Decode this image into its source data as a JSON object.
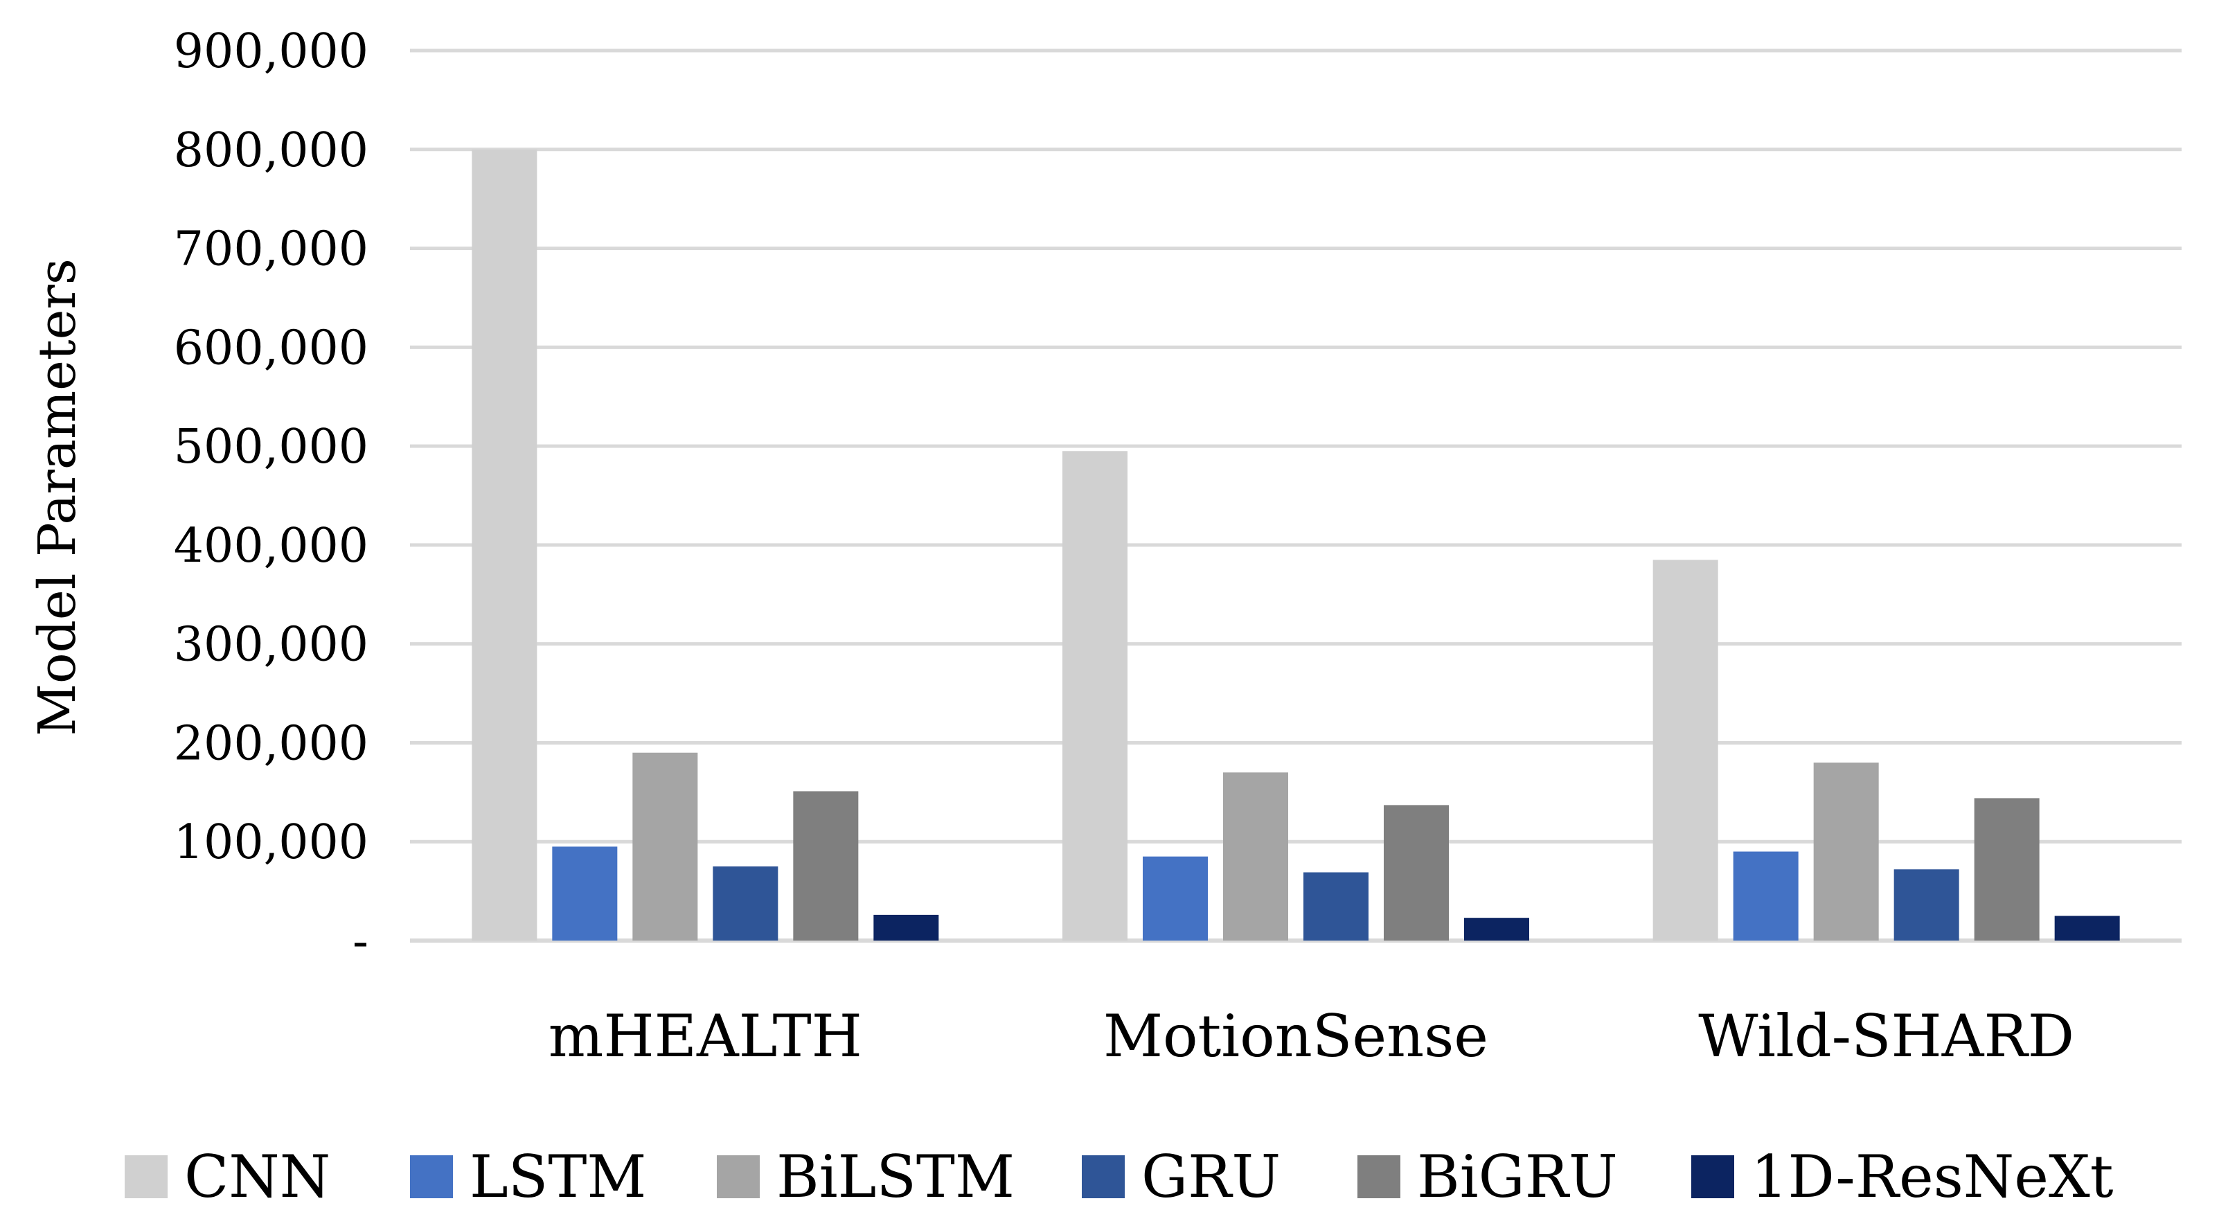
{
  "chart_data": {
    "type": "bar",
    "title": "",
    "xlabel": "",
    "ylabel": "Model Parameters",
    "ylim": [
      0,
      900000
    ],
    "yticks": [
      0,
      100000,
      200000,
      300000,
      400000,
      500000,
      600000,
      700000,
      800000,
      900000
    ],
    "ytick_labels": [
      "-",
      "100,000",
      "200,000",
      "300,000",
      "400,000",
      "500,000",
      "600,000",
      "700,000",
      "800,000",
      "900,000"
    ],
    "grid": true,
    "legend_position": "bottom",
    "categories": [
      "mHEALTH",
      "MotionSense",
      "Wild-SHARD"
    ],
    "series": [
      {
        "name": "CNN",
        "color": "#d0d0d0",
        "values": [
          800000,
          495000,
          385000
        ]
      },
      {
        "name": "LSTM",
        "color": "#4472c4",
        "values": [
          95000,
          85000,
          90000
        ]
      },
      {
        "name": "BiLSTM",
        "color": "#a5a5a5",
        "values": [
          190000,
          170000,
          180000
        ]
      },
      {
        "name": "GRU",
        "color": "#2f5597",
        "values": [
          75000,
          69000,
          72000
        ]
      },
      {
        "name": "BiGRU",
        "color": "#7f7f7f",
        "values": [
          151000,
          137000,
          144000
        ]
      },
      {
        "name": "1D-ResNeXt",
        "color": "#0c2461",
        "values": [
          26000,
          23000,
          25000
        ]
      }
    ]
  }
}
